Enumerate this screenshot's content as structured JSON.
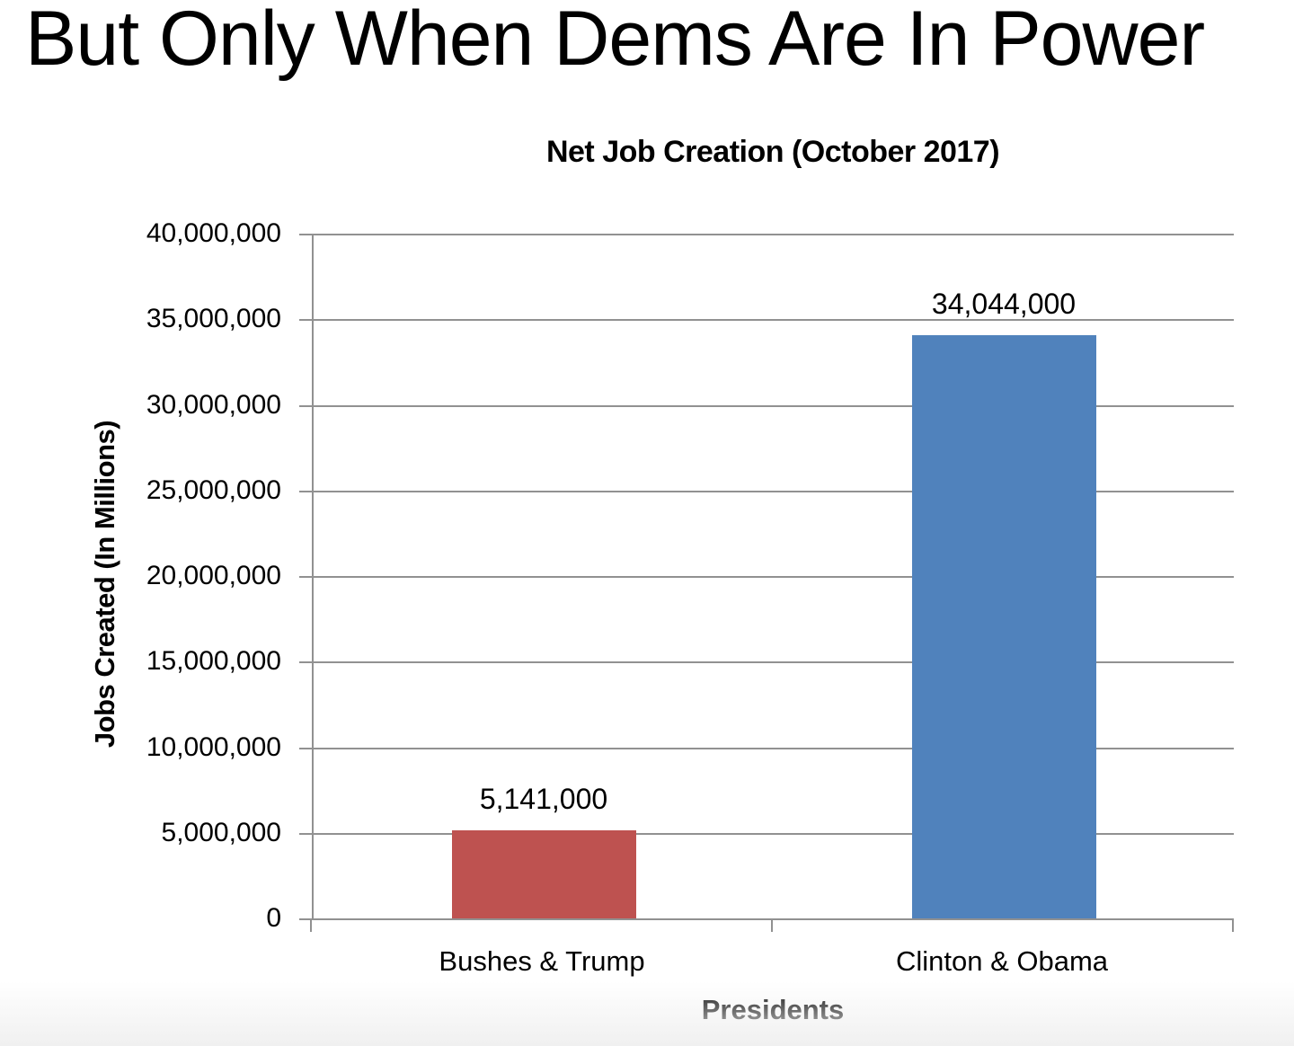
{
  "headline": "But Only When Dems Are In Power",
  "chart_data": {
    "type": "bar",
    "title": "Net Job Creation (October 2017)",
    "xlabel": "Presidents",
    "ylabel": "Jobs Created (In Millions)",
    "categories": [
      "Bushes & Trump",
      "Clinton & Obama"
    ],
    "values": [
      5141000,
      34044000
    ],
    "value_labels": [
      "5,141,000",
      "34,044,000"
    ],
    "bar_colors": [
      "#BE5250",
      "#5082BC"
    ],
    "ylim": [
      0,
      40000000
    ],
    "ytick_step": 5000000,
    "ytick_labels": [
      "40,000,000",
      "35,000,000",
      "30,000,000",
      "25,000,000",
      "20,000,000",
      "15,000,000",
      "10,000,000",
      "5,000,000",
      "0"
    ],
    "grid": true,
    "legend_position": "none",
    "colors": {
      "grid": "#919191",
      "text": "#000000"
    }
  }
}
